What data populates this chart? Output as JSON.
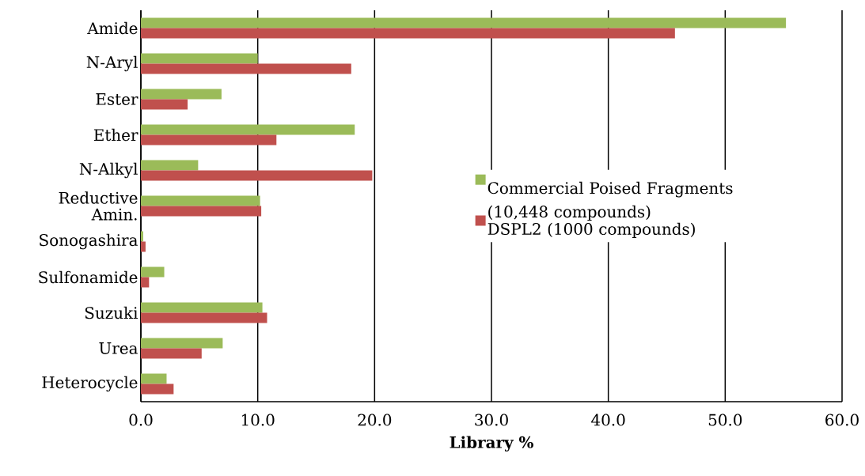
{
  "chart_data": {
    "type": "bar",
    "orientation": "horizontal",
    "xlabel": "Library %",
    "categories": [
      "Amide",
      "N-Aryl",
      "Ester",
      "Ether",
      "N-Alkyl",
      "Reductive Amin.",
      "Sonogashira",
      "Sulfonamide",
      "Suzuki",
      "Urea",
      "Heterocycle"
    ],
    "series": [
      {
        "name": "Commercial Poised Fragments (10,448 compounds)",
        "color": "#9bbb59",
        "values": [
          55.2,
          10.0,
          6.9,
          18.3,
          4.9,
          10.2,
          0.2,
          2.0,
          10.4,
          7.0,
          2.2
        ]
      },
      {
        "name": "DSPL2 (1000 compounds)",
        "color": "#c0504d",
        "values": [
          45.7,
          18.0,
          4.0,
          11.6,
          19.8,
          10.3,
          0.4,
          0.7,
          10.8,
          5.2,
          2.8
        ]
      }
    ],
    "xlim": [
      0,
      60
    ],
    "xticks": [
      {
        "value": 0,
        "label": "0.0"
      },
      {
        "value": 10,
        "label": "10.0"
      },
      {
        "value": 20,
        "label": "20.0"
      },
      {
        "value": 30,
        "label": "30.0"
      },
      {
        "value": 40,
        "label": "40.0"
      },
      {
        "value": 50,
        "label": "50.0"
      },
      {
        "value": 60,
        "label": "60.0"
      }
    ],
    "grid": "x",
    "legend": "right"
  }
}
